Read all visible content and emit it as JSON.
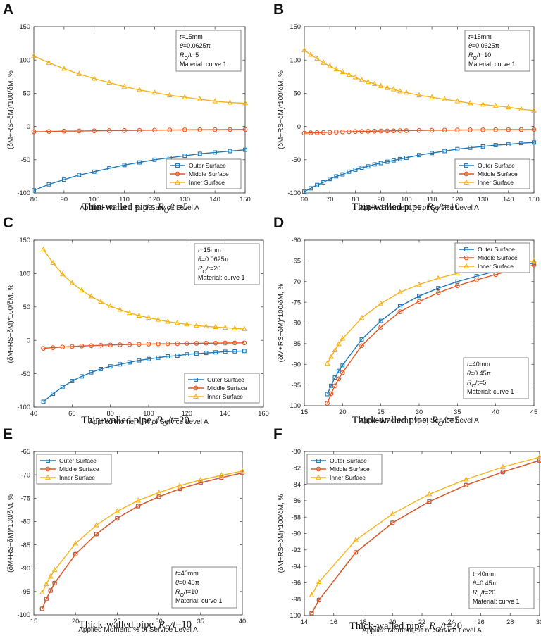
{
  "colors": {
    "outer": "#1f77b4",
    "outer_fill": "#1f77b4",
    "middle": "#e8551e",
    "inner": "#f5b31a"
  },
  "ylabel_text": "(δM+RS−δM)*100/δM, %",
  "legend_labels": [
    "Outer Surface",
    "Middle Surface",
    "Inner Surface"
  ],
  "chart_data": [
    {
      "letter": "A",
      "type": "line",
      "caption_prefix": "Thin-walled pipe, ",
      "caption_math": "RO/t =5",
      "xlabel": "Applied Moment, % of Service Level A",
      "ylabel": "(δM+RS−δM)*100/δM, %",
      "xlim": [
        80,
        150
      ],
      "ylim": [
        -100,
        150
      ],
      "xticks": [
        80,
        90,
        100,
        110,
        120,
        130,
        140,
        150
      ],
      "yticks": [
        -100,
        -50,
        0,
        50,
        100,
        150
      ],
      "annotation": [
        "t=15mm",
        "θ=0.0625π",
        "RO/t=5",
        "Material: curve 1"
      ],
      "legend_pos": "bottom-right",
      "x": [
        80,
        85,
        90,
        95,
        100,
        105,
        110,
        115,
        120,
        125,
        130,
        135,
        140,
        145,
        150
      ],
      "series": [
        {
          "name": "Outer Surface",
          "values": [
            -96,
            -87,
            -80,
            -73,
            -68,
            -63,
            -58,
            -54,
            -50,
            -47,
            -44,
            -41,
            -39,
            -37,
            -35
          ]
        },
        {
          "name": "Middle Surface",
          "values": [
            -8,
            -7.5,
            -7,
            -6.8,
            -6.5,
            -6.2,
            -6,
            -5.8,
            -5.5,
            -5.3,
            -5,
            -4.9,
            -4.8,
            -4.6,
            -4.5
          ]
        },
        {
          "name": "Inner Surface",
          "values": [
            106,
            96,
            87,
            79,
            72,
            66,
            60,
            55,
            51,
            47,
            44,
            41,
            38,
            36,
            35
          ]
        }
      ]
    },
    {
      "letter": "B",
      "type": "line",
      "caption_prefix": "Thin-walled pipe, ",
      "caption_math": "RO/t=10",
      "xlabel": "Applied Moment, % of Service Level A",
      "ylabel": "(δM+RS−δM)*100/δM, %",
      "xlim": [
        60,
        150
      ],
      "ylim": [
        -100,
        150
      ],
      "xticks": [
        60,
        70,
        80,
        90,
        100,
        110,
        120,
        130,
        140,
        150
      ],
      "yticks": [
        -100,
        -50,
        0,
        50,
        100,
        150
      ],
      "annotation": [
        "t=15mm",
        "θ=0.0625π",
        "RO/t=10",
        "Material: curve 1"
      ],
      "legend_pos": "bottom-right",
      "x": [
        60,
        62.5,
        65,
        67.5,
        70,
        72.5,
        75,
        77.5,
        80,
        82.5,
        85,
        87.5,
        90,
        92.5,
        95,
        97.5,
        100,
        105,
        110,
        115,
        120,
        125,
        130,
        135,
        140,
        145,
        150
      ],
      "series": [
        {
          "name": "Outer Surface",
          "values": [
            -98,
            -93,
            -88,
            -84,
            -79,
            -75,
            -72,
            -68,
            -65,
            -62,
            -60,
            -57,
            -55,
            -53,
            -51,
            -49,
            -47,
            -43,
            -40,
            -37,
            -34,
            -32,
            -30,
            -28,
            -27,
            -25,
            -24
          ]
        },
        {
          "name": "Middle Surface",
          "values": [
            -10,
            -9.6,
            -9.3,
            -9,
            -8.7,
            -8.4,
            -8.1,
            -7.9,
            -7.6,
            -7.4,
            -7.2,
            -7,
            -6.8,
            -6.7,
            -6.5,
            -6.3,
            -6.2,
            -5.9,
            -5.7,
            -5.5,
            -5.3,
            -5.1,
            -5,
            -4.9,
            -4.8,
            -4.7,
            -4.6
          ]
        },
        {
          "name": "Inner Surface",
          "values": [
            115,
            108,
            102,
            96,
            91,
            86,
            82,
            78,
            74,
            70,
            67,
            64,
            61,
            58,
            56,
            53,
            51,
            47,
            44,
            41,
            38,
            35,
            33,
            31,
            29,
            26,
            24
          ]
        }
      ]
    },
    {
      "letter": "C",
      "type": "line",
      "caption_prefix": "Thin-walled pipe, ",
      "caption_math": "RO/t=20",
      "xlabel": "Applied Moment, % of Service Level A",
      "ylabel": "(δM+RS−δM)*100/δM, %",
      "xlim": [
        40,
        160
      ],
      "ylim": [
        -100,
        150
      ],
      "xticks": [
        40,
        60,
        80,
        100,
        120,
        140,
        160
      ],
      "yticks": [
        -100,
        -50,
        0,
        50,
        100,
        150
      ],
      "annotation": [
        "t=15mm",
        "θ=0.0625π",
        "RO/t=20",
        "Material: curve 1"
      ],
      "legend_pos": "bottom-right",
      "x": [
        45,
        50,
        55,
        60,
        65,
        70,
        75,
        80,
        85,
        90,
        95,
        100,
        105,
        110,
        115,
        120,
        125,
        130,
        135,
        140,
        145,
        150
      ],
      "series": [
        {
          "name": "Outer Surface",
          "values": [
            -92,
            -80,
            -70,
            -61,
            -54,
            -48,
            -43,
            -39,
            -36,
            -33,
            -30,
            -28,
            -26,
            -24,
            -23,
            -21,
            -20,
            -19,
            -18,
            -17,
            -16.5,
            -16
          ]
        },
        {
          "name": "Middle Surface",
          "values": [
            -12,
            -11,
            -10,
            -9.2,
            -8.5,
            -8,
            -7.4,
            -7,
            -6.6,
            -6.2,
            -5.9,
            -5.6,
            -5.3,
            -5.1,
            -4.9,
            -4.7,
            -4.5,
            -4.3,
            -4.2,
            -4,
            -3.9,
            -3.8
          ]
        },
        {
          "name": "Inner Surface",
          "values": [
            136,
            116,
            99,
            86,
            75,
            66,
            58,
            51,
            46,
            41,
            37,
            34,
            31,
            28,
            26,
            24,
            22,
            21,
            20,
            19,
            18,
            17
          ]
        }
      ]
    },
    {
      "letter": "D",
      "type": "line",
      "caption_prefix": "Thick-walled pipe, ",
      "caption_math": "RO/t=5",
      "xlabel": "Applied Moment, % of Service Level A",
      "ylabel": "(δM+RS−δM)*100/δM, %",
      "xlim": [
        15,
        45
      ],
      "ylim": [
        -100,
        -60
      ],
      "xticks": [
        15,
        20,
        25,
        30,
        35,
        40,
        45
      ],
      "yticks": [
        -100,
        -95,
        -90,
        -85,
        -80,
        -75,
        -70,
        -65,
        -60
      ],
      "annotation": [
        "t=40mm",
        "θ=0.45π",
        "RO/t=5",
        "Material: curve 1"
      ],
      "legend_pos": "top-right",
      "x": [
        18,
        18.5,
        19,
        19.5,
        20,
        22.5,
        25,
        27.5,
        30,
        32.5,
        35,
        37.5,
        40,
        42.5,
        45
      ],
      "series": [
        {
          "name": "Outer Surface",
          "values": [
            -97.2,
            -95.2,
            -93.2,
            -91.6,
            -90.2,
            -84,
            -79.5,
            -76,
            -73.5,
            -71.6,
            -70,
            -68.7,
            -67.5,
            -66.5,
            -65.5
          ]
        },
        {
          "name": "Middle Surface",
          "values": [
            -99.4,
            -97.1,
            -95.2,
            -93.5,
            -92,
            -85.5,
            -81,
            -77.3,
            -74.8,
            -72.7,
            -71,
            -69.6,
            -68.3,
            -67.1,
            -66
          ]
        },
        {
          "name": "Inner Surface",
          "values": [
            -89.8,
            -88.2,
            -86.6,
            -85.1,
            -83.8,
            -78.8,
            -75.3,
            -72.6,
            -70.7,
            -69.2,
            -68,
            -67.1,
            -66.3,
            -65.6,
            -65
          ]
        }
      ]
    },
    {
      "letter": "E",
      "type": "line",
      "caption_prefix": "Thick-walled pipe, ",
      "caption_math": "RO/t=10",
      "xlabel": "Applied Moment, % of Service Level A",
      "ylabel": "(δM+RS−δM)*100/δM, %",
      "xlim": [
        15,
        40
      ],
      "ylim": [
        -100,
        -65
      ],
      "xticks": [
        15,
        20,
        25,
        30,
        35,
        40
      ],
      "yticks": [
        -100,
        -95,
        -90,
        -85,
        -80,
        -75,
        -70,
        -65
      ],
      "annotation": [
        "t=40mm",
        "θ=0.45π",
        "RO/t=10",
        "Material: curve 1"
      ],
      "legend_pos": "top-left",
      "x": [
        16,
        16.5,
        17,
        17.5,
        20,
        22.5,
        25,
        27.5,
        30,
        32.5,
        35,
        37.5,
        40
      ],
      "series": [
        {
          "name": "Outer Surface",
          "values": [
            -98.7,
            -96.6,
            -94.8,
            -93.2,
            -87,
            -82.7,
            -79.3,
            -76.7,
            -74.7,
            -73,
            -71.7,
            -70.6,
            -69.6
          ]
        },
        {
          "name": "Middle Surface",
          "values": [
            -98.7,
            -96.6,
            -94.8,
            -93.2,
            -87,
            -82.7,
            -79.3,
            -76.7,
            -74.7,
            -73,
            -71.7,
            -70.6,
            -69.6
          ]
        },
        {
          "name": "Inner Surface",
          "values": [
            -95.2,
            -93.4,
            -91.8,
            -90.4,
            -84.7,
            -80.8,
            -77.8,
            -75.5,
            -73.8,
            -72.3,
            -71.1,
            -70.1,
            -69.2
          ]
        }
      ]
    },
    {
      "letter": "F",
      "type": "line",
      "caption_prefix": "Thick-walled pipe, ",
      "caption_math": "RO/t=20",
      "xlabel": "Applied Moment, % of Service Level A",
      "ylabel": "(δM+RS−δM)*100/δM, %",
      "xlim": [
        14,
        30
      ],
      "ylim": [
        -100,
        -80
      ],
      "xticks": [
        14,
        16,
        18,
        20,
        22,
        24,
        26,
        28,
        30
      ],
      "yticks": [
        -100,
        -98,
        -96,
        -94,
        -92,
        -90,
        -88,
        -86,
        -84,
        -82,
        -80
      ],
      "annotation": [
        "t=40mm",
        "θ=0.45π",
        "RO/t=20",
        "Material: curve 1"
      ],
      "legend_pos": "top-left",
      "x": [
        14.5,
        15,
        17.5,
        20,
        22.5,
        25,
        27.5,
        30
      ],
      "series": [
        {
          "name": "Outer Surface",
          "values": [
            -99.7,
            -98.1,
            -92.3,
            -88.7,
            -86.1,
            -84.1,
            -82.5,
            -81.1
          ]
        },
        {
          "name": "Middle Surface",
          "values": [
            -99.7,
            -98.1,
            -92.3,
            -88.7,
            -86.1,
            -84.1,
            -82.5,
            -81.1
          ]
        },
        {
          "name": "Inner Surface",
          "values": [
            -97.5,
            -95.9,
            -90.8,
            -87.6,
            -85.2,
            -83.4,
            -81.9,
            -80.7
          ]
        }
      ]
    }
  ]
}
